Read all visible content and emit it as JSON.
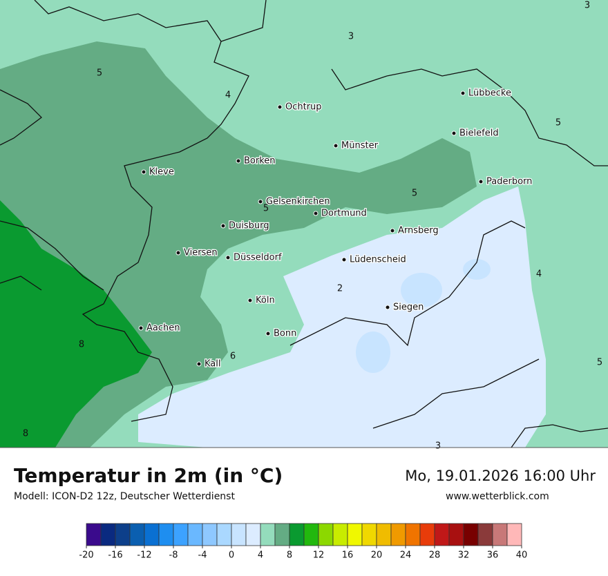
{
  "header": {
    "title": "Temperatur in 2m (in °C)",
    "subtitle": "Modell: ICON-D2 12z, Deutscher Wetterdienst",
    "datetime": "Mo, 19.01.2026 16:00 Uhr",
    "website": "www.wetterblick.com"
  },
  "map": {
    "cities": [
      "Ochtrup",
      "Lübbecke",
      "Bielefeld",
      "Münster",
      "Borken",
      "Kleve",
      "Paderborn",
      "Gelsenkirchen",
      "Dortmund",
      "Duisburg",
      "Arnsberg",
      "Viersen",
      "Düsseldorf",
      "Lüdenscheid",
      "Köln",
      "Siegen",
      "Aachen",
      "Bonn",
      "Kall"
    ],
    "contour_labels": [
      3,
      3,
      5,
      4,
      5,
      5,
      5,
      4,
      2,
      8,
      6,
      5,
      8,
      3
    ]
  },
  "colorbar": {
    "bins": [
      -20,
      -18,
      -16,
      -14,
      -12,
      -10,
      -8,
      -6,
      -4,
      -2,
      0,
      2,
      4,
      6,
      8,
      10,
      12,
      14,
      16,
      18,
      20,
      22,
      24,
      26,
      28,
      30,
      32,
      34,
      36,
      38,
      40
    ],
    "colors": [
      "#3a0a8c",
      "#0a2a80",
      "#0d3f8a",
      "#0b5fb0",
      "#0a70d2",
      "#1e8ef0",
      "#3ca2ff",
      "#6ab8ff",
      "#8ec8ff",
      "#aad8ff",
      "#c8e4ff",
      "#dcecff",
      "#94dcbc",
      "#64ac84",
      "#0a9a30",
      "#22b80e",
      "#8cd800",
      "#c8ec00",
      "#f0f800",
      "#f0d800",
      "#f0bc00",
      "#f09a00",
      "#f07400",
      "#e83c0a",
      "#c01818",
      "#a81010",
      "#780000",
      "#8a3a3a",
      "#c87878",
      "#ffb8b8",
      "#ffe0e0"
    ],
    "ticks": [
      -20,
      -16,
      -12,
      -8,
      -4,
      0,
      4,
      8,
      12,
      16,
      20,
      24,
      28,
      32,
      36,
      40
    ]
  }
}
